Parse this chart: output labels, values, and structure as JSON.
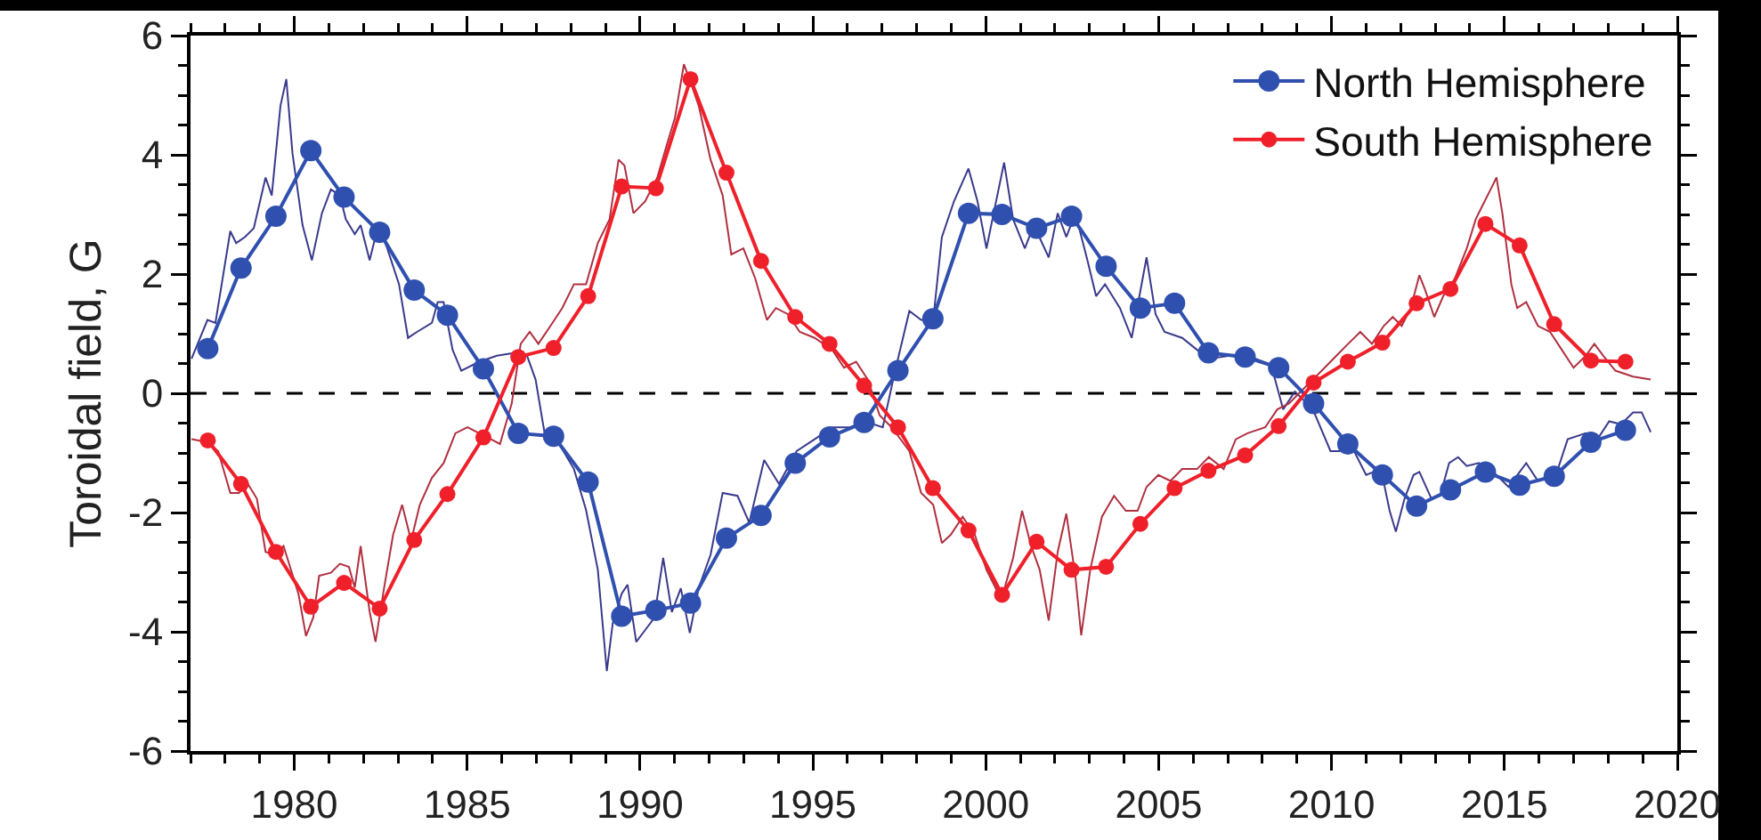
{
  "chart_data": {
    "type": "line",
    "ylabel": "Toroidal field, G",
    "xlim": [
      1977,
      2020
    ],
    "ylim": [
      -6,
      6
    ],
    "xticks": [
      1980,
      1985,
      1990,
      1995,
      2000,
      2005,
      2010,
      2015,
      2020,
      {
        "value": 1977,
        "label": null
      },
      {
        "value": 1978,
        "label": null
      },
      {
        "value": 1979,
        "label": null
      },
      {
        "value": 1981,
        "label": null
      },
      {
        "value": 1982,
        "label": null
      },
      {
        "value": 1983,
        "label": null
      },
      {
        "value": 1984,
        "label": null
      },
      {
        "value": 1986,
        "label": null
      },
      {
        "value": 1987,
        "label": null
      },
      {
        "value": 1988,
        "label": null
      },
      {
        "value": 1989,
        "label": null
      },
      {
        "value": 1991,
        "label": null
      },
      {
        "value": 1992,
        "label": null
      },
      {
        "value": 1993,
        "label": null
      },
      {
        "value": 1994,
        "label": null
      },
      {
        "value": 1996,
        "label": null
      },
      {
        "value": 1997,
        "label": null
      },
      {
        "value": 1998,
        "label": null
      },
      {
        "value": 1999,
        "label": null
      },
      {
        "value": 2001,
        "label": null
      },
      {
        "value": 2002,
        "label": null
      },
      {
        "value": 2003,
        "label": null
      },
      {
        "value": 2004,
        "label": null
      },
      {
        "value": 2006,
        "label": null
      },
      {
        "value": 2007,
        "label": null
      },
      {
        "value": 2008,
        "label": null
      },
      {
        "value": 2009,
        "label": null
      },
      {
        "value": 2011,
        "label": null
      },
      {
        "value": 2012,
        "label": null
      },
      {
        "value": 2013,
        "label": null
      },
      {
        "value": 2014,
        "label": null
      },
      {
        "value": 2016,
        "label": null
      },
      {
        "value": 2017,
        "label": null
      },
      {
        "value": 2018,
        "label": null
      },
      {
        "value": 2019,
        "label": null
      }
    ],
    "yticks": [
      -6,
      -4,
      -2,
      0,
      2,
      4,
      6,
      {
        "value": -5.5,
        "label": null
      },
      {
        "value": -5,
        "label": null
      },
      {
        "value": -4.5,
        "label": null
      },
      {
        "value": -3.5,
        "label": null
      },
      {
        "value": -3,
        "label": null
      },
      {
        "value": -2.5,
        "label": null
      },
      {
        "value": -1.5,
        "label": null
      },
      {
        "value": -1,
        "label": null
      },
      {
        "value": -0.5,
        "label": null
      },
      {
        "value": 0.5,
        "label": null
      },
      {
        "value": 1,
        "label": null
      },
      {
        "value": 1.5,
        "label": null
      },
      {
        "value": 2.5,
        "label": null
      },
      {
        "value": 3,
        "label": null
      },
      {
        "value": 3.5,
        "label": null
      },
      {
        "value": 4.5,
        "label": null
      },
      {
        "value": 5,
        "label": null
      },
      {
        "value": 5.5,
        "label": null
      }
    ],
    "grid": false,
    "legend": "top right",
    "ref_lines": [
      {
        "axis": "y",
        "value": 0,
        "color": "#000000",
        "line_style": "dashed"
      }
    ],
    "series": [
      {
        "color": "#3a3a8c",
        "marker": "none",
        "x": [
          1977.03,
          1977.49,
          1977.72,
          1978.15,
          1978.32,
          1978.57,
          1978.83,
          1979.17,
          1979.35,
          1979.6,
          1979.77,
          1979.95,
          1980.24,
          1980.51,
          1980.8,
          1981.06,
          1981.32,
          1981.49,
          1981.75,
          1981.92,
          1982.18,
          1982.43,
          1982.69,
          1983.03,
          1983.29,
          1983.55,
          1983.98,
          1984.15,
          1984.32,
          1984.58,
          1984.83,
          1985.35,
          1985.86,
          1986.38,
          1986.72,
          1986.98,
          1987.24,
          1987.58,
          1988.09,
          1988.44,
          1988.78,
          1989.04,
          1989.21,
          1989.47,
          1989.64,
          1989.89,
          1990.15,
          1990.41,
          1990.67,
          1990.92,
          1991.18,
          1991.44,
          1991.7,
          1992.04,
          1992.39,
          1992.82,
          1993.16,
          1993.59,
          1994.02,
          1994.53,
          1995.05,
          1995.56,
          1996.07,
          1996.5,
          1997.02,
          1997.36,
          1997.79,
          1998.13,
          1998.48,
          1998.73,
          1999.08,
          1999.5,
          1999.76,
          2000.02,
          2000.28,
          2000.53,
          2000.79,
          2001.13,
          2001.39,
          2001.82,
          2002.08,
          2002.33,
          2002.59,
          2002.94,
          2003.19,
          2003.45,
          2003.88,
          2004.22,
          2004.65,
          2004.91,
          2005.17,
          2005.68,
          2006.11,
          2006.45,
          2007.05,
          2007.57,
          2008.25,
          2008.6,
          2008.94,
          2009.46,
          2009.97,
          2010.23,
          2010.48,
          2011,
          2011.43,
          2011.68,
          2011.86,
          2012.11,
          2012.37,
          2012.54,
          2012.89,
          2013.14,
          2013.4,
          2013.66,
          2013.91,
          2014.26,
          2014.77,
          2015.12,
          2015.63,
          2015.97,
          2016.49,
          2016.83,
          2017.35,
          2017.69,
          2018.03,
          2018.37,
          2018.72,
          2018.97,
          2019.23
        ],
        "values": [
          0.58,
          1.23,
          1.18,
          2.72,
          2.52,
          2.62,
          2.77,
          3.62,
          3.32,
          4.82,
          5.27,
          4.02,
          2.82,
          2.23,
          3.02,
          3.42,
          3.32,
          2.92,
          2.67,
          2.82,
          2.23,
          2.82,
          2.43,
          1.83,
          0.93,
          1.03,
          1.18,
          1.53,
          1.53,
          0.73,
          0.38,
          0.53,
          0.63,
          0.68,
          0.65,
          0.23,
          -0.67,
          -0.77,
          -1.27,
          -1.96,
          -2.96,
          -4.66,
          -3.86,
          -3.36,
          -3.21,
          -4.17,
          -3.97,
          -3.77,
          -2.76,
          -3.67,
          -3.27,
          -4.02,
          -3.26,
          -2.71,
          -1.67,
          -1.72,
          -2.17,
          -1.12,
          -1.52,
          -0.97,
          -0.77,
          -0.57,
          -0.57,
          -0.47,
          -0.57,
          0.33,
          1.38,
          1.23,
          1.23,
          2.62,
          3.22,
          3.77,
          3.22,
          2.43,
          3.17,
          3.87,
          2.92,
          2.43,
          2.82,
          2.28,
          3.02,
          2.62,
          3.02,
          2.23,
          1.63,
          1.83,
          1.43,
          0.93,
          2.28,
          1.33,
          1.03,
          0.93,
          0.73,
          0.58,
          0.63,
          0.63,
          0.48,
          -0.27,
          0.03,
          -0.27,
          -0.97,
          -0.97,
          -0.77,
          -1.37,
          -1.27,
          -1.97,
          -2.32,
          -1.77,
          -1.37,
          -1.32,
          -1.77,
          -1.72,
          -1.17,
          -1.07,
          -1.22,
          -1.17,
          -1.37,
          -1.57,
          -1.17,
          -1.47,
          -1.37,
          -0.77,
          -0.67,
          -0.77,
          -0.47,
          -0.52,
          -0.32,
          -0.32,
          -0.65
        ]
      },
      {
        "color": "#b03040",
        "marker": "none",
        "x": [
          1977.03,
          1977.49,
          1977.8,
          1978.15,
          1978.4,
          1978.66,
          1978.92,
          1979.17,
          1979.43,
          1979.69,
          1980.12,
          1980.34,
          1980.55,
          1980.72,
          1981.06,
          1981.32,
          1981.58,
          1981.75,
          1981.92,
          1982.18,
          1982.35,
          1982.6,
          1982.86,
          1983.12,
          1983.38,
          1983.63,
          1983.98,
          1984.32,
          1984.66,
          1985.01,
          1985.35,
          1985.69,
          1985.95,
          1986.29,
          1986.55,
          1986.81,
          1987.06,
          1987.41,
          1987.75,
          1988.09,
          1988.44,
          1988.78,
          1989.12,
          1989.38,
          1989.55,
          1989.81,
          1990.15,
          1990.5,
          1990.75,
          1991.01,
          1991.27,
          1991.52,
          1991.7,
          1991.87,
          1992.04,
          1992.39,
          1992.64,
          1992.99,
          1993.33,
          1993.67,
          1993.93,
          1994.27,
          1994.62,
          1995.05,
          1995.56,
          1995.9,
          1996.25,
          1996.59,
          1996.93,
          1997.28,
          1997.79,
          1998.13,
          1998.48,
          1998.73,
          1998.99,
          1999.33,
          1999.68,
          2000.02,
          2000.45,
          2000.79,
          2001.05,
          2001.31,
          2001.56,
          2001.82,
          2002.08,
          2002.33,
          2002.59,
          2002.76,
          2003.02,
          2003.36,
          2003.71,
          2004.05,
          2004.39,
          2004.65,
          2004.99,
          2005.34,
          2005.68,
          2006.11,
          2006.45,
          2006.88,
          2007.23,
          2007.57,
          2008.08,
          2008.43,
          2008.77,
          2009.11,
          2009.46,
          2009.8,
          2010.14,
          2010.48,
          2010.83,
          2011.17,
          2011.51,
          2011.77,
          2012.03,
          2012.29,
          2012.54,
          2012.71,
          2012.97,
          2013.23,
          2013.57,
          2013.91,
          2014.17,
          2014.34,
          2014.6,
          2014.77,
          2014.94,
          2015.2,
          2015.37,
          2015.63,
          2015.97,
          2016.32,
          2016.66,
          2017,
          2017.35,
          2017.6,
          2017.86,
          2018.21,
          2018.72,
          2019.23
        ],
        "values": [
          -0.77,
          -0.82,
          -0.97,
          -1.67,
          -1.67,
          -1.52,
          -1.77,
          -2.66,
          -2.71,
          -2.56,
          -3.36,
          -4.07,
          -3.76,
          -3.06,
          -3.01,
          -2.86,
          -2.91,
          -3.26,
          -2.56,
          -3.66,
          -4.17,
          -3.26,
          -2.37,
          -1.87,
          -2.47,
          -1.87,
          -1.42,
          -1.17,
          -0.67,
          -0.57,
          -0.67,
          -0.77,
          -0.85,
          -0.17,
          0.83,
          1.03,
          0.83,
          1.13,
          1.43,
          1.83,
          1.83,
          2.52,
          2.92,
          3.92,
          3.82,
          3.02,
          3.22,
          3.62,
          4.12,
          4.62,
          5.52,
          5.12,
          4.82,
          4.37,
          3.92,
          3.32,
          2.33,
          2.43,
          1.93,
          1.23,
          1.43,
          1.33,
          1.03,
          0.93,
          0.73,
          0.43,
          0.53,
          0.23,
          -0.37,
          -0.57,
          -0.97,
          -1.67,
          -1.87,
          -2.51,
          -2.37,
          -2.07,
          -2.37,
          -2.96,
          -3.46,
          -2.76,
          -1.97,
          -2.56,
          -2.96,
          -3.81,
          -2.66,
          -2.02,
          -3.06,
          -4.06,
          -2.96,
          -2.07,
          -1.72,
          -1.97,
          -1.97,
          -1.57,
          -1.37,
          -1.47,
          -1.27,
          -1.27,
          -1.07,
          -1.27,
          -0.77,
          -0.67,
          -0.57,
          -0.27,
          -0.17,
          0.03,
          0.23,
          0.43,
          0.63,
          0.83,
          1.03,
          0.83,
          1.13,
          1.28,
          1.13,
          1.43,
          1.98,
          1.73,
          1.28,
          1.63,
          1.93,
          2.43,
          2.92,
          3.12,
          3.42,
          3.62,
          3.02,
          1.83,
          1.43,
          1.53,
          1.13,
          1.03,
          0.73,
          0.43,
          0.63,
          0.83,
          0.63,
          0.38,
          0.28,
          0.23
        ]
      },
      {
        "name": "North Hemisphere",
        "color": "#3050b0",
        "marker": "circle",
        "x": [
          1977.5,
          1978.46,
          1979.47,
          1980.48,
          1981.44,
          1982.47,
          1983.47,
          1984.43,
          1985.47,
          1986.48,
          1987.5,
          1988.5,
          1989.47,
          1990.46,
          1991.46,
          1992.5,
          1993.5,
          1994.49,
          1995.48,
          1996.48,
          1997.46,
          1998.47,
          1999.5,
          2000.47,
          2001.47,
          2002.48,
          2003.48,
          2004.47,
          2005.46,
          2006.44,
          2007.5,
          2008.47,
          2009.48,
          2010.47,
          2011.47,
          2012.46,
          2013.44,
          2014.45,
          2015.44,
          2016.44,
          2017.5,
          2018.5
        ],
        "values": [
          0.75,
          2.1,
          2.97,
          4.07,
          3.29,
          2.7,
          1.73,
          1.31,
          0.41,
          -0.67,
          -0.72,
          -1.49,
          -3.74,
          -3.64,
          -3.52,
          -2.43,
          -2.05,
          -1.17,
          -0.73,
          -0.49,
          0.38,
          1.25,
          3.02,
          3.0,
          2.77,
          2.97,
          2.13,
          1.43,
          1.51,
          0.68,
          0.61,
          0.43,
          -0.17,
          -0.85,
          -1.37,
          -1.89,
          -1.62,
          -1.32,
          -1.54,
          -1.39,
          -0.82,
          -0.62
        ]
      },
      {
        "name": "South Hemisphere",
        "color": "#f0202a",
        "marker": "circle",
        "x": [
          1977.5,
          1978.46,
          1979.47,
          1980.48,
          1981.44,
          1982.47,
          1983.47,
          1984.43,
          1985.47,
          1986.48,
          1987.5,
          1988.5,
          1989.47,
          1990.46,
          1991.46,
          1992.5,
          1993.5,
          1994.49,
          1995.48,
          1996.48,
          1997.46,
          1998.47,
          1999.5,
          2000.47,
          2001.47,
          2002.48,
          2003.48,
          2004.47,
          2005.46,
          2006.44,
          2007.5,
          2008.47,
          2009.48,
          2010.47,
          2011.47,
          2012.46,
          2013.44,
          2014.45,
          2015.44,
          2016.44,
          2017.5,
          2018.5
        ],
        "values": [
          -0.79,
          -1.52,
          -2.66,
          -3.58,
          -3.18,
          -3.61,
          -2.46,
          -1.69,
          -0.74,
          0.61,
          0.76,
          1.63,
          3.47,
          3.44,
          5.27,
          3.7,
          2.22,
          1.28,
          0.83,
          0.13,
          -0.57,
          -1.59,
          -2.3,
          -3.38,
          -2.49,
          -2.96,
          -2.91,
          -2.19,
          -1.59,
          -1.3,
          -1.04,
          -0.55,
          0.18,
          0.53,
          0.85,
          1.51,
          1.75,
          2.84,
          2.48,
          1.16,
          0.55,
          0.53
        ]
      }
    ]
  }
}
